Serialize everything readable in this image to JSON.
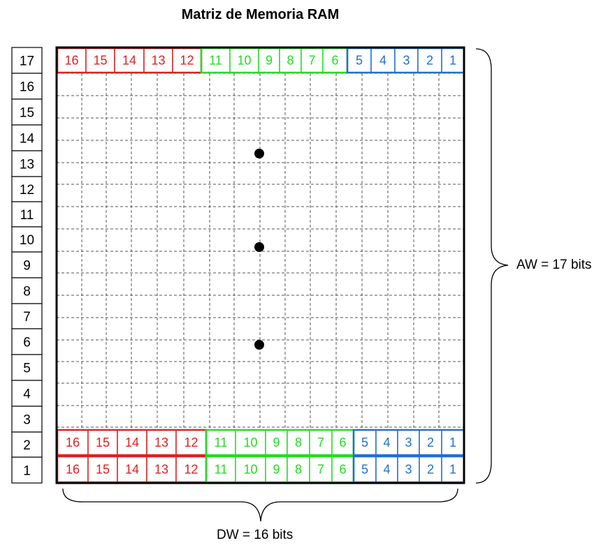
{
  "title": "Matriz de Memoria RAM",
  "address_rows": [
    "17",
    "16",
    "15",
    "14",
    "13",
    "12",
    "11",
    "10",
    "9",
    "8",
    "7",
    "6",
    "5",
    "4",
    "3",
    "2",
    "1"
  ],
  "bit_labels": [
    "16",
    "15",
    "14",
    "13",
    "12",
    "11",
    "10",
    "9",
    "8",
    "7",
    "6",
    "5",
    "4",
    "3",
    "2",
    "1"
  ],
  "bit_groups": [
    {
      "bits": [
        "16",
        "15",
        "14",
        "13",
        "12"
      ],
      "color": "#e02020"
    },
    {
      "bits": [
        "11",
        "10",
        "9",
        "8",
        "7",
        "6"
      ],
      "color": "#22dd22"
    },
    {
      "bits": [
        "5",
        "4",
        "3",
        "2",
        "1"
      ],
      "color": "#2070d0"
    }
  ],
  "filled_words": [
    "17",
    "2",
    "1"
  ],
  "ellipsis": "continuation-dots",
  "aw_label": "AW = 17 bits",
  "dw_label": "DW = 16 bits"
}
